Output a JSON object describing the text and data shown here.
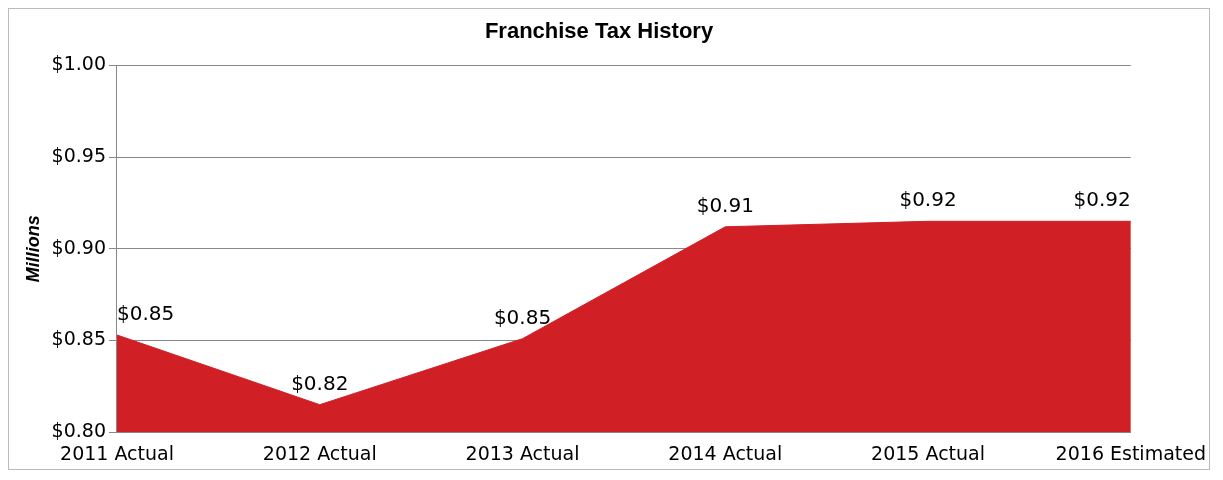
{
  "chart_data": {
    "type": "area",
    "title": "Franchise Tax History",
    "ylabel": "Millions",
    "categories": [
      "2011 Actual",
      "2012 Actual",
      "2013 Actual",
      "2014 Actual",
      "2015 Actual",
      "2016 Estimated"
    ],
    "series": [
      {
        "color": "#d11f26",
        "values": [
          0.853,
          0.815,
          0.851,
          0.912,
          0.915,
          0.915
        ],
        "value_labels": [
          "$0.85",
          "$0.82",
          "$0.85",
          "$0.91",
          "$0.92",
          "$0.92"
        ]
      }
    ],
    "ylim": [
      0.8,
      1.0
    ],
    "yticks": [
      {
        "value": 0.8,
        "label": "$0.80"
      },
      {
        "value": 0.85,
        "label": "$0.85"
      },
      {
        "value": 0.9,
        "label": "$0.90"
      },
      {
        "value": 0.95,
        "label": "$0.95"
      },
      {
        "value": 1.0,
        "label": "$1.00"
      }
    ],
    "grid": "y",
    "legend": false
  }
}
